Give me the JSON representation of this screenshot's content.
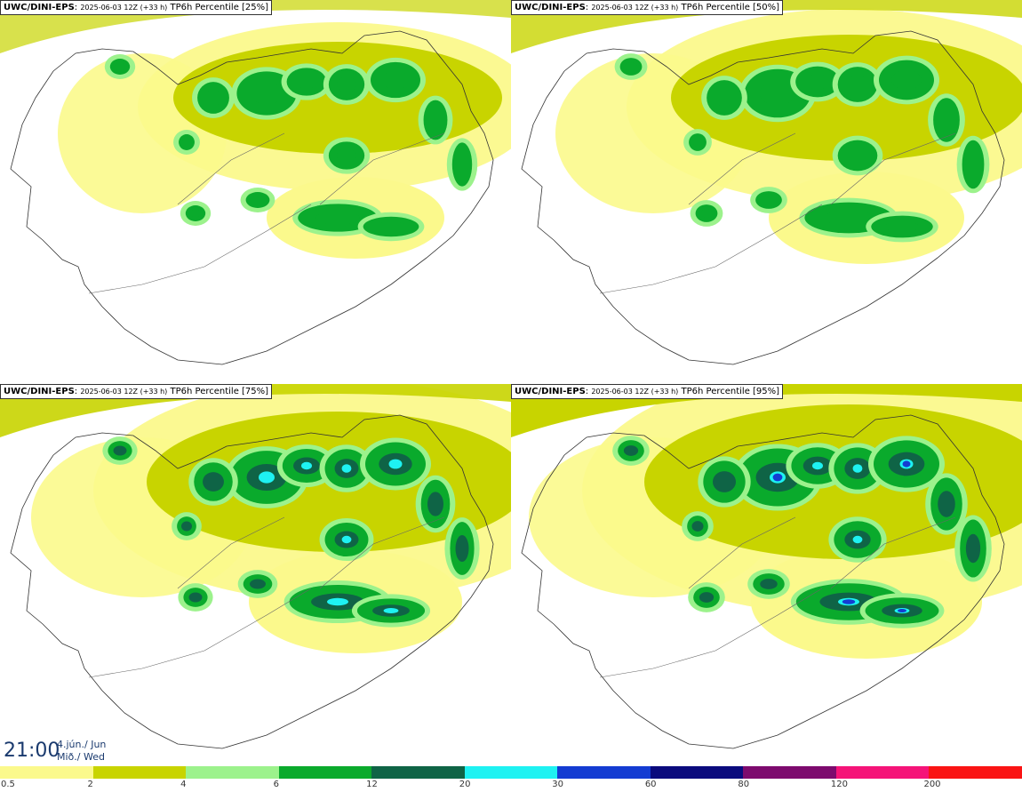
{
  "panels": [
    {
      "model": "UWC/DINI-EPS",
      "run": "2025-06-03 12Z (+33 h)",
      "field": "TP6h Percentile [25%]",
      "level": 1
    },
    {
      "model": "UWC/DINI-EPS",
      "run": "2025-06-03 12Z (+33 h)",
      "field": "TP6h Percentile [50%]",
      "level": 2
    },
    {
      "model": "UWC/DINI-EPS",
      "run": "2025-06-03 12Z (+33 h)",
      "field": "TP6h Percentile [75%]",
      "level": 3
    },
    {
      "model": "UWC/DINI-EPS",
      "run": "2025-06-03 12Z (+33 h)",
      "field": "TP6h Percentile [95%]",
      "level": 4
    }
  ],
  "valid_time": {
    "time": "21:00",
    "date": "4.jún./ Jun",
    "weekday": "Mið./ Wed"
  },
  "legend": {
    "colors": [
      "#fbf98c",
      "#c8d400",
      "#9cf28c",
      "#0aaa2c",
      "#0f6446",
      "#1ef2f2",
      "#143cd2",
      "#0a0a7d",
      "#7d0a6e",
      "#f51478",
      "#fa1414"
    ],
    "labels": [
      "0.5",
      "2",
      "4",
      "6",
      "12",
      "20",
      "30",
      "60",
      "80",
      "120",
      "200"
    ]
  }
}
